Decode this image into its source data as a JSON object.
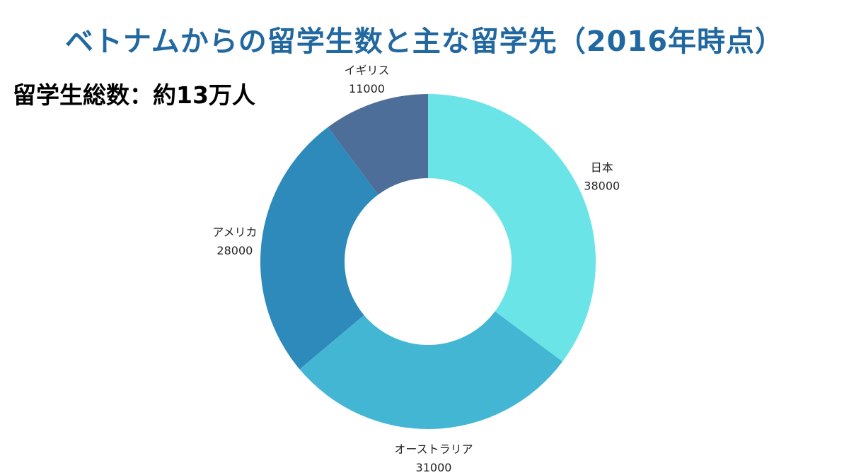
{
  "title": "ベトナムからの留学生数と主な留学先（2016年時点）",
  "subtitle": "留学生総数：約13万人",
  "colors": {
    "title": "#2268a0",
    "subtitle": "#000000",
    "label": "#222222"
  },
  "chart_data": {
    "type": "pie",
    "donut": true,
    "categories": [
      "日本",
      "オーストラリア",
      "アメリカ",
      "イギリス"
    ],
    "values": [
      38000,
      31000,
      28000,
      11000
    ],
    "value_labels": [
      "38000",
      "31000",
      "28000",
      "11000"
    ],
    "colors": [
      "#6be4e8",
      "#43b6d4",
      "#2e8abb",
      "#4e6e9a"
    ],
    "start": "12 o'clock, clockwise",
    "legend": "none",
    "title": "ベトナムからの留学生数と主な留学先（2016年時点）"
  }
}
